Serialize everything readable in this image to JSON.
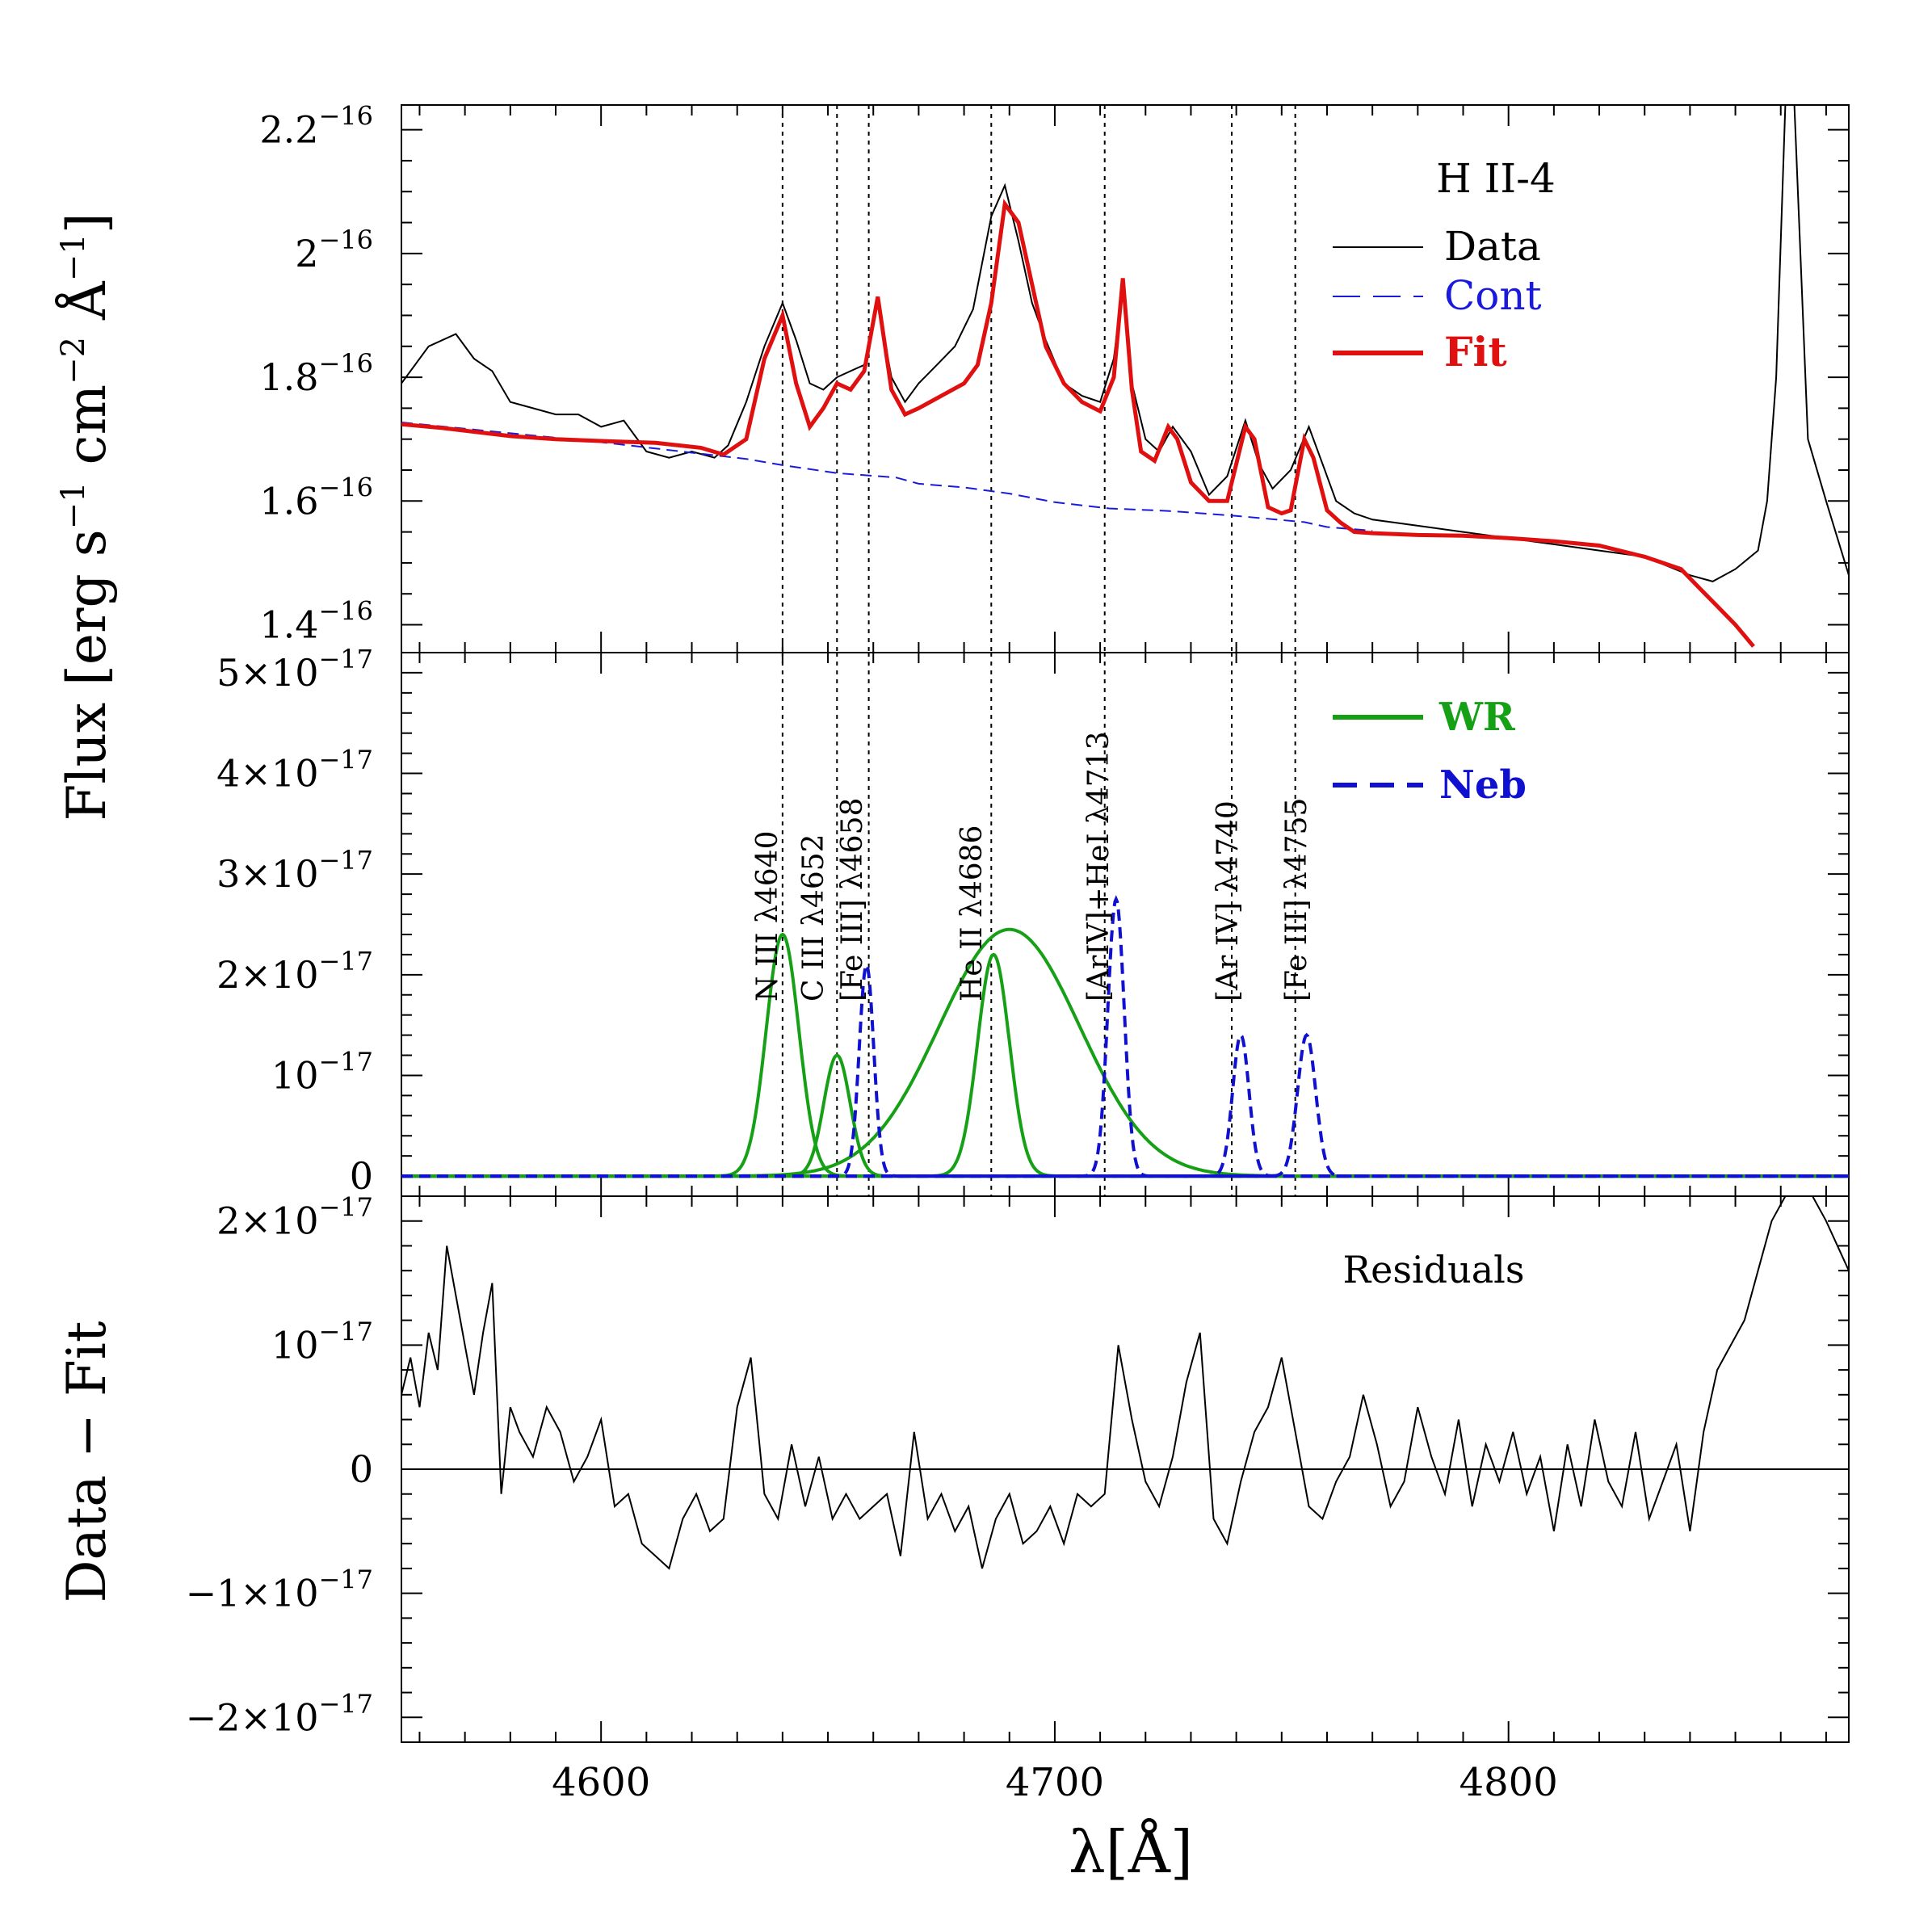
{
  "colors": {
    "data": "#000000",
    "cont": "#1a1adc",
    "fit": "#e01010",
    "wr": "#16a016",
    "neb": "#1010d0",
    "axis": "#000000"
  },
  "chart_data": [
    {
      "panel": "top",
      "type": "line",
      "title": "H II-4",
      "xlabel": "",
      "ylabel": "",
      "xlim": [
        4556,
        4875
      ],
      "ylim": [
        1.355e-16,
        2.24e-16
      ],
      "ytick_labels": [
        {
          "value": 1.4e-16,
          "mant": "1.4",
          "exp": "−16"
        },
        {
          "value": 1.6e-16,
          "mant": "1.6",
          "exp": "−16"
        },
        {
          "value": 1.8e-16,
          "mant": "1.8",
          "exp": "−16"
        },
        {
          "value": 2e-16,
          "mant": "2",
          "exp": "−16"
        },
        {
          "value": 2.2e-16,
          "mant": "2.2",
          "exp": "−16"
        }
      ],
      "legend": {
        "placement": "top-right",
        "items": [
          {
            "label": "Data",
            "style": "thin",
            "color_key": "data"
          },
          {
            "label": "Cont",
            "style": "dashed",
            "color_key": "cont"
          },
          {
            "label": "Fit",
            "style": "thick",
            "color_key": "fit"
          }
        ]
      },
      "series": [
        {
          "name": "Data",
          "x": [
            4556,
            4562,
            4568,
            4572,
            4576,
            4580,
            4585,
            4590,
            4595,
            4600,
            4605,
            4610,
            4615,
            4620,
            4625,
            4628,
            4632,
            4636,
            4640,
            4643,
            4646,
            4649,
            4652,
            4655,
            4658,
            4661,
            4664,
            4667,
            4670,
            4674,
            4678,
            4682,
            4686,
            4689,
            4692,
            4695,
            4698,
            4702,
            4706,
            4710,
            4713,
            4715,
            4717,
            4720,
            4723,
            4726,
            4730,
            4734,
            4738,
            4742,
            4745,
            4748,
            4752,
            4756,
            4759,
            4762,
            4766,
            4770,
            4780,
            4790,
            4800,
            4810,
            4820,
            4830,
            4840,
            4845,
            4850,
            4855,
            4857,
            4859,
            4861,
            4863,
            4866,
            4870,
            4875
          ],
          "y": [
            1.79e-16,
            1.85e-16,
            1.87e-16,
            1.83e-16,
            1.81e-16,
            1.76e-16,
            1.75e-16,
            1.74e-16,
            1.74e-16,
            1.72e-16,
            1.73e-16,
            1.68e-16,
            1.67e-16,
            1.68e-16,
            1.67e-16,
            1.69e-16,
            1.76e-16,
            1.85e-16,
            1.92e-16,
            1.86e-16,
            1.79e-16,
            1.78e-16,
            1.8e-16,
            1.81e-16,
            1.82e-16,
            1.92e-16,
            1.8e-16,
            1.76e-16,
            1.79e-16,
            1.82e-16,
            1.85e-16,
            1.91e-16,
            2.06e-16,
            2.11e-16,
            2.02e-16,
            1.92e-16,
            1.86e-16,
            1.79e-16,
            1.77e-16,
            1.76e-16,
            1.83e-16,
            1.95e-16,
            1.79e-16,
            1.7e-16,
            1.68e-16,
            1.72e-16,
            1.68e-16,
            1.61e-16,
            1.64e-16,
            1.73e-16,
            1.66e-16,
            1.62e-16,
            1.65e-16,
            1.72e-16,
            1.66e-16,
            1.6e-16,
            1.58e-16,
            1.57e-16,
            1.56e-16,
            1.55e-16,
            1.54e-16,
            1.53e-16,
            1.52e-16,
            1.51e-16,
            1.48e-16,
            1.47e-16,
            1.49e-16,
            1.52e-16,
            1.6e-16,
            1.8e-16,
            2.24e-16,
            2.24e-16,
            1.7e-16,
            1.6e-16,
            1.48e-16
          ]
        },
        {
          "name": "Cont",
          "x": [
            4556,
            4600,
            4632,
            4640,
            4652,
            4665,
            4670,
            4680,
            4690,
            4700,
            4712,
            4725,
            4740,
            4755,
            4760,
            4770
          ],
          "y": [
            1.727e-16,
            1.695e-16,
            1.668e-16,
            1.658e-16,
            1.645e-16,
            1.638e-16,
            1.628e-16,
            1.622e-16,
            1.612e-16,
            1.598e-16,
            1.588e-16,
            1.584e-16,
            1.576e-16,
            1.566e-16,
            1.558e-16,
            1.552e-16
          ]
        },
        {
          "name": "Fit",
          "x": [
            4556,
            4565,
            4580,
            4590,
            4600,
            4612,
            4622,
            4627,
            4632,
            4636,
            4640,
            4643,
            4646,
            4649,
            4652,
            4655,
            4658,
            4661,
            4664,
            4667,
            4670,
            4675,
            4680,
            4683,
            4686,
            4689,
            4692,
            4695,
            4698,
            4702,
            4706,
            4710,
            4713,
            4715,
            4717,
            4719,
            4722,
            4725,
            4727,
            4730,
            4734,
            4738,
            4742,
            4744,
            4747,
            4750,
            4752,
            4755,
            4757,
            4760,
            4763,
            4766,
            4770,
            4780,
            4790,
            4800,
            4810,
            4820,
            4830,
            4838,
            4842,
            4846,
            4850,
            4854
          ],
          "y": [
            1.724e-16,
            1.718e-16,
            1.705e-16,
            1.7e-16,
            1.697e-16,
            1.694e-16,
            1.686e-16,
            1.675e-16,
            1.7e-16,
            1.83e-16,
            1.9e-16,
            1.79e-16,
            1.72e-16,
            1.75e-16,
            1.79e-16,
            1.78e-16,
            1.81e-16,
            1.93e-16,
            1.78e-16,
            1.74e-16,
            1.75e-16,
            1.77e-16,
            1.79e-16,
            1.82e-16,
            1.92e-16,
            2.08e-16,
            2.05e-16,
            1.95e-16,
            1.85e-16,
            1.79e-16,
            1.76e-16,
            1.745e-16,
            1.8e-16,
            1.96e-16,
            1.78e-16,
            1.68e-16,
            1.665e-16,
            1.72e-16,
            1.7e-16,
            1.63e-16,
            1.6e-16,
            1.6e-16,
            1.72e-16,
            1.7e-16,
            1.59e-16,
            1.58e-16,
            1.585e-16,
            1.7e-16,
            1.67e-16,
            1.585e-16,
            1.565e-16,
            1.55e-16,
            1.548e-16,
            1.545e-16,
            1.544e-16,
            1.54e-16,
            1.535e-16,
            1.528e-16,
            1.51e-16,
            1.49e-16,
            1.46e-16,
            1.43e-16,
            1.4e-16,
            1.365e-16
          ]
        }
      ]
    },
    {
      "panel": "middle",
      "type": "line",
      "xlabel": "",
      "ylabel": "",
      "xlim": [
        4556,
        4875
      ],
      "ylim": [
        -2e-18,
        5.2e-17
      ],
      "ytick_labels": [
        {
          "value": 0,
          "mant": "0",
          "exp": ""
        },
        {
          "value": 1e-17,
          "mant": "10",
          "exp": "−17"
        },
        {
          "value": 2e-17,
          "mant": "2×10",
          "exp": "−17"
        },
        {
          "value": 3e-17,
          "mant": "3×10",
          "exp": "−17"
        },
        {
          "value": 4e-17,
          "mant": "4×10",
          "exp": "−17"
        },
        {
          "value": 5e-17,
          "mant": "5×10",
          "exp": "−17"
        }
      ],
      "legend": {
        "placement": "top-right",
        "items": [
          {
            "label": "WR",
            "style": "thick",
            "color_key": "wr"
          },
          {
            "label": "Neb",
            "style": "thick-dashed",
            "color_key": "neb"
          }
        ]
      },
      "series": [
        {
          "name": "WR",
          "kind": "gaussian",
          "components": [
            {
              "center": 4640,
              "amplitude": 2.4e-17,
              "sigma": 3.6
            },
            {
              "center": 4652,
              "amplitude": 1.2e-17,
              "sigma": 2.9
            },
            {
              "center": 4690,
              "amplitude": 2.45e-17,
              "sigma": 15.5
            },
            {
              "center": 4686.5,
              "amplitude": 2.2e-17,
              "sigma": 3.5
            }
          ]
        },
        {
          "name": "Neb",
          "kind": "gaussian",
          "components": [
            {
              "center": 4658.5,
              "amplitude": 2.1e-17,
              "sigma": 1.6
            },
            {
              "center": 4713.5,
              "amplitude": 2.75e-17,
              "sigma": 1.8
            },
            {
              "center": 4741,
              "amplitude": 1.4e-17,
              "sigma": 1.8
            },
            {
              "center": 4755.5,
              "amplitude": 1.4e-17,
              "sigma": 2
            }
          ]
        }
      ]
    },
    {
      "panel": "bottom",
      "type": "line",
      "title": "Residuals",
      "xlabel": "λ[Å]",
      "ylabel": "",
      "xlim": [
        4556,
        4875
      ],
      "ylim": [
        -2.2e-17,
        2.2e-17
      ],
      "ytick_labels": [
        {
          "value": -2e-17,
          "mant": "−2×10",
          "exp": "−17"
        },
        {
          "value": -1e-17,
          "mant": "−1×10",
          "exp": "−17"
        },
        {
          "value": 0,
          "mant": "0",
          "exp": ""
        },
        {
          "value": 1e-17,
          "mant": "10",
          "exp": "−17"
        },
        {
          "value": 2e-17,
          "mant": "2×10",
          "exp": "−17"
        }
      ],
      "xtick_labels": [
        4600,
        4700,
        4800
      ],
      "series": [
        {
          "name": "Data - Fit",
          "x": [
            4556,
            4558,
            4560,
            4562,
            4564,
            4566,
            4568,
            4570,
            4572,
            4574,
            4576,
            4578,
            4580,
            4582,
            4585,
            4588,
            4591,
            4594,
            4597,
            4600,
            4603,
            4606,
            4609,
            4612,
            4615,
            4618,
            4621,
            4624,
            4627,
            4630,
            4633,
            4636,
            4639,
            4642,
            4645,
            4648,
            4651,
            4654,
            4657,
            4660,
            4663,
            4666,
            4669,
            4672,
            4675,
            4678,
            4681,
            4684,
            4687,
            4690,
            4693,
            4696,
            4699,
            4702,
            4705,
            4708,
            4711,
            4714,
            4717,
            4720,
            4723,
            4726,
            4729,
            4732,
            4735,
            4738,
            4741,
            4744,
            4747,
            4750,
            4753,
            4756,
            4759,
            4762,
            4765,
            4768,
            4771,
            4774,
            4777,
            4780,
            4783,
            4786,
            4789,
            4792,
            4795,
            4798,
            4801,
            4804,
            4807,
            4810,
            4813,
            4816,
            4819,
            4822,
            4825,
            4828,
            4831,
            4834,
            4837,
            4840,
            4843,
            4846,
            4849,
            4852,
            4855,
            4858,
            4861,
            4864,
            4867,
            4870,
            4875
          ],
          "y": [
            6e-18,
            9e-18,
            5e-18,
            1.1e-17,
            8e-18,
            1.8e-17,
            1.4e-17,
            1e-17,
            6e-18,
            1.1e-17,
            1.5e-17,
            -2e-18,
            5e-18,
            3e-18,
            1e-18,
            5e-18,
            3e-18,
            -1e-18,
            1e-18,
            4e-18,
            -3e-18,
            -2e-18,
            -6e-18,
            -7e-18,
            -8e-18,
            -4e-18,
            -2e-18,
            -5e-18,
            -4e-18,
            5e-18,
            9e-18,
            -2e-18,
            -4e-18,
            2e-18,
            -3e-18,
            1e-18,
            -4e-18,
            -2e-18,
            -4e-18,
            -3e-18,
            -2e-18,
            -7e-18,
            3e-18,
            -4e-18,
            -2e-18,
            -5e-18,
            -3e-18,
            -8e-18,
            -4e-18,
            -2e-18,
            -6e-18,
            -5e-18,
            -3e-18,
            -6e-18,
            -2e-18,
            -3e-18,
            -2e-18,
            1e-17,
            4e-18,
            -1e-18,
            -3e-18,
            1e-18,
            7e-18,
            1.1e-17,
            -4e-18,
            -6e-18,
            -1e-18,
            3e-18,
            5e-18,
            9e-18,
            3e-18,
            -3e-18,
            -4e-18,
            -1e-18,
            1e-18,
            6e-18,
            2e-18,
            -3e-18,
            -1e-18,
            5e-18,
            1e-18,
            -2e-18,
            4e-18,
            -3e-18,
            2e-18,
            -1e-18,
            3e-18,
            -2e-18,
            1e-18,
            -5e-18,
            2e-18,
            -3e-18,
            4e-18,
            -1e-18,
            -3e-18,
            3e-18,
            -4e-18,
            -1e-18,
            2e-18,
            -5e-18,
            3e-18,
            8e-18,
            1e-17,
            1.2e-17,
            1.6e-17,
            2e-17,
            2.2e-17,
            2.2e-17,
            2.2e-17,
            2e-17,
            1.6e-17
          ]
        }
      ]
    }
  ],
  "line_labels": [
    {
      "x": 4640,
      "text": "N III λ4640"
    },
    {
      "x": 4652,
      "text": "C III λ4652"
    },
    {
      "x": 4658,
      "text": "[Fe III] λ4658"
    },
    {
      "x": 4686,
      "text": "He II λ4686"
    },
    {
      "x": 4713,
      "text": "[ArIV]+HeI λ4713"
    },
    {
      "x": 4740,
      "text": "[Ar IV] λ4740"
    },
    {
      "x": 4755,
      "text": "[Fe III] λ4755"
    }
  ],
  "ylabels": {
    "top": "Flux [erg s",
    "top_full_parts": [
      "Flux [erg s",
      "−1",
      " cm",
      "−2",
      " Å",
      "−1",
      "]"
    ],
    "bottom": "Data − Fit"
  }
}
